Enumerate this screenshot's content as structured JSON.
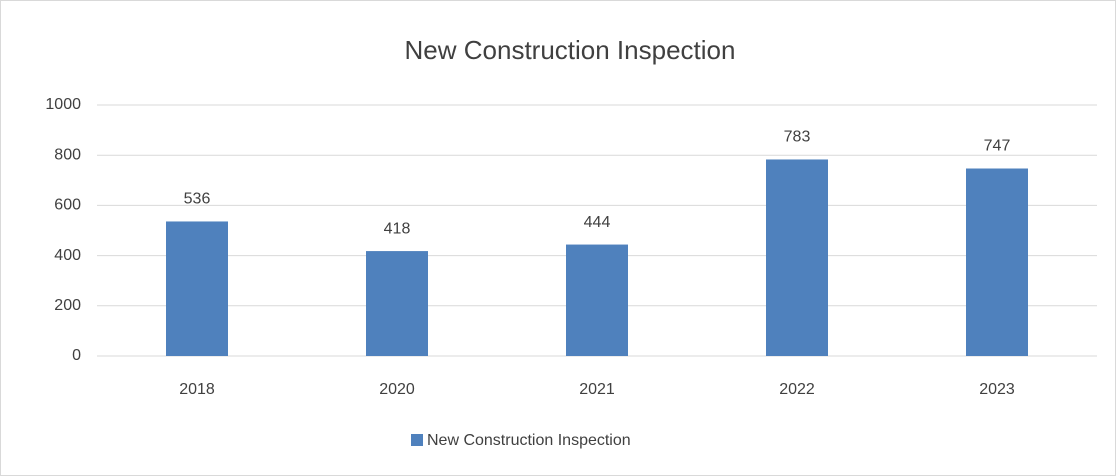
{
  "chart_data": {
    "type": "bar",
    "title": "New Construction Inspection",
    "categories": [
      "2018",
      "2020",
      "2021",
      "2022",
      "2023"
    ],
    "series": [
      {
        "name": "New Construction Inspection",
        "color": "#4f81bd",
        "values": [
          536,
          418,
          444,
          783,
          747
        ]
      }
    ],
    "ylim": [
      0,
      1000
    ],
    "yticks": [
      0,
      200,
      400,
      600,
      800,
      1000
    ],
    "grid": true,
    "data_labels": true,
    "legend": "bottom"
  }
}
